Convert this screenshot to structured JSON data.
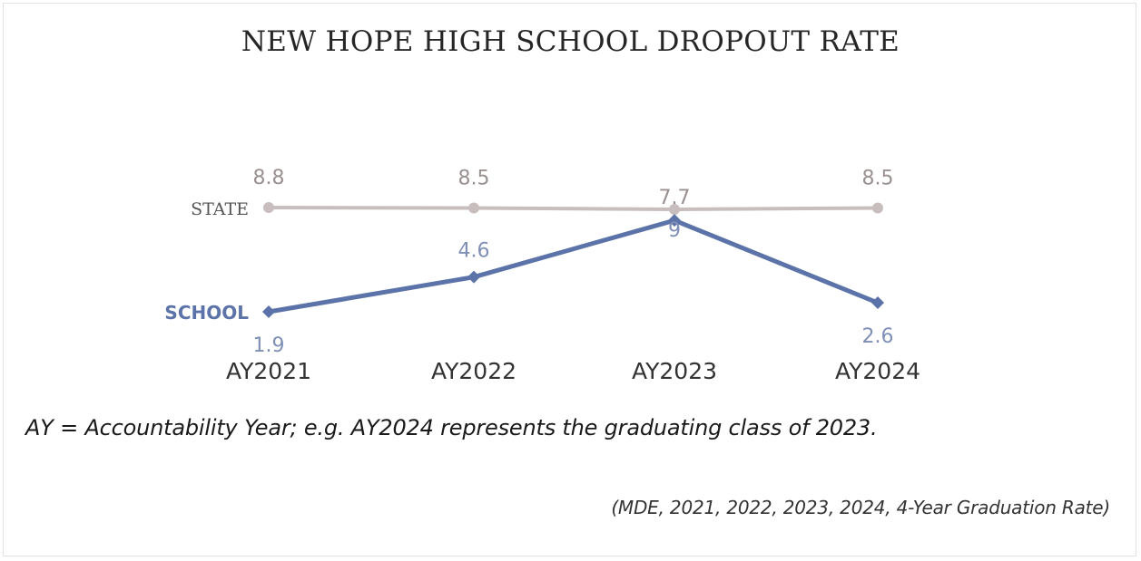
{
  "chart_data": {
    "type": "line",
    "title": "NEW HOPE HIGH SCHOOL DROPOUT RATE",
    "categories": [
      "AY2021",
      "AY2022",
      "AY2023",
      "AY2024"
    ],
    "series": [
      {
        "name": "STATE",
        "values": [
          8.8,
          8.5,
          7.7,
          8.5
        ],
        "data_labels": [
          "8.8",
          "8.5",
          "7.7",
          "8.5"
        ],
        "color": "#c8bebe"
      },
      {
        "name": "SCHOOL",
        "values": [
          1.9,
          4.6,
          9,
          2.6
        ],
        "data_labels": [
          "1.9",
          "4.6",
          "9",
          "2.6"
        ],
        "color": "#5b73a8"
      }
    ],
    "grid": false,
    "legend": "inline-left"
  },
  "note": "AY = Accountability Year; e.g. AY2024 represents the graduating class of 2023.",
  "source": "(MDE, 2021, 2022, 2023, 2024, 4-Year Graduation Rate)"
}
